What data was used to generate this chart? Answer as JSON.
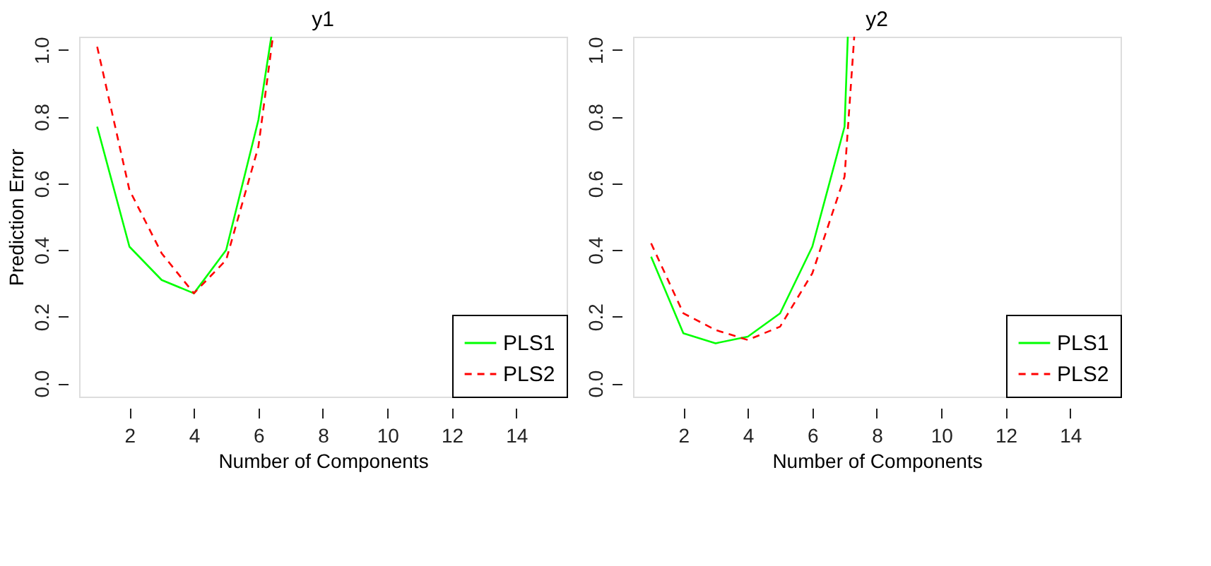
{
  "chart_data": [
    {
      "type": "line",
      "title": "y1",
      "xlabel": "Number of Components",
      "ylabel": "Prediction Error",
      "xlim": [
        0.44,
        15.56
      ],
      "ylim": [
        -0.04,
        1.04
      ],
      "xticks": [
        2,
        4,
        6,
        8,
        10,
        12,
        14
      ],
      "yticks": [
        {
          "value": 0,
          "label": "0.0"
        },
        {
          "value": 0.2,
          "label": "0.2"
        },
        {
          "value": 0.4,
          "label": "0.4"
        },
        {
          "value": 0.6,
          "label": "0.6"
        },
        {
          "value": 0.8,
          "label": "0.8"
        },
        {
          "value": 1,
          "label": "1.0"
        }
      ],
      "legend": "bottom right",
      "series": [
        {
          "name": "PLS1",
          "color": "#00ff00",
          "line_style": "solid",
          "x": [
            1,
            2,
            3,
            4,
            5,
            6,
            6.4
          ],
          "values": [
            0.77,
            0.41,
            0.31,
            0.27,
            0.4,
            0.79,
            1.04
          ]
        },
        {
          "name": "PLS2",
          "color": "#ff0000",
          "line_style": "dashed",
          "x": [
            1,
            2,
            3,
            4,
            5,
            6,
            6.45
          ],
          "values": [
            1.01,
            0.58,
            0.39,
            0.27,
            0.37,
            0.71,
            1.04
          ]
        }
      ]
    },
    {
      "type": "line",
      "title": "y2",
      "xlabel": "Number of Components",
      "xlim": [
        0.44,
        15.56
      ],
      "ylim": [
        -0.04,
        1.04
      ],
      "xticks": [
        2,
        4,
        6,
        8,
        10,
        12,
        14
      ],
      "yticks": [
        {
          "value": 0,
          "label": "0.0"
        },
        {
          "value": 0.2,
          "label": "0.2"
        },
        {
          "value": 0.4,
          "label": "0.4"
        },
        {
          "value": 0.6,
          "label": "0.6"
        },
        {
          "value": 0.8,
          "label": "0.8"
        },
        {
          "value": 1,
          "label": "1.0"
        }
      ],
      "legend": "bottom right",
      "series": [
        {
          "name": "PLS1",
          "color": "#00ff00",
          "line_style": "solid",
          "x": [
            1,
            2,
            3,
            4,
            5,
            6,
            7,
            7.1
          ],
          "values": [
            0.38,
            0.15,
            0.12,
            0.14,
            0.21,
            0.41,
            0.77,
            1.04
          ]
        },
        {
          "name": "PLS2",
          "color": "#ff0000",
          "line_style": "dashed",
          "x": [
            1,
            2,
            3,
            4,
            5,
            6,
            7,
            7.3
          ],
          "values": [
            0.42,
            0.21,
            0.16,
            0.13,
            0.17,
            0.33,
            0.62,
            1.04
          ]
        }
      ]
    }
  ]
}
